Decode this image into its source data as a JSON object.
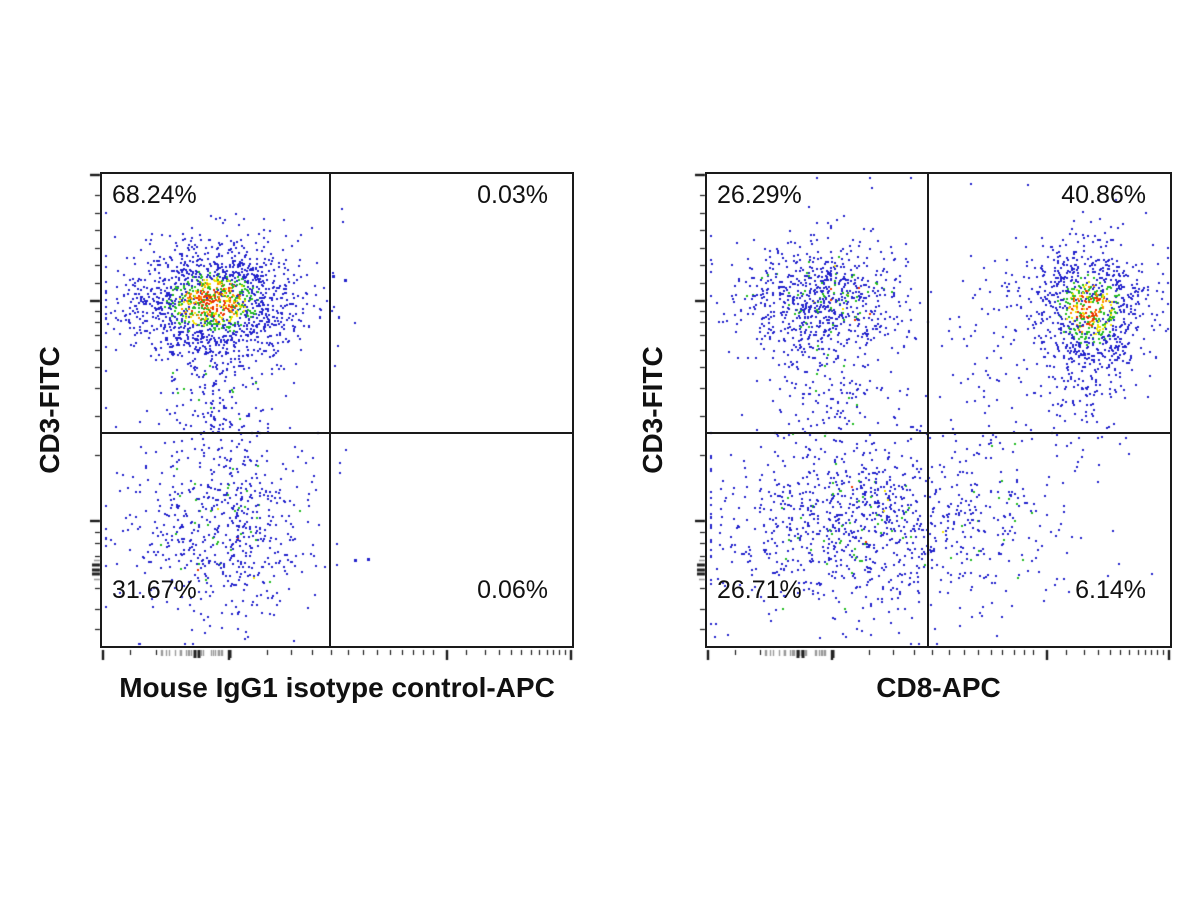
{
  "figure_title": "",
  "colors": {
    "dot_blue": "#2222cc",
    "dot_green": "#22bb22",
    "dot_yellow": "#f0e400",
    "dot_orange": "#ff8800",
    "dot_red": "#ee3300",
    "axis": "#1a1a1a",
    "rug_grey": "#9b9b9b",
    "text": "#111111"
  },
  "axis_ticks": {
    "x_major": [
      0.003,
      0.27,
      0.735,
      0.997
    ],
    "x_minor": [
      0.06,
      0.115,
      0.35,
      0.402,
      0.447,
      0.487,
      0.523,
      0.556,
      0.586,
      0.613,
      0.638,
      0.662,
      0.684,
      0.705,
      0.775,
      0.815,
      0.845,
      0.87,
      0.892,
      0.912,
      0.93,
      0.946,
      0.96,
      0.973,
      0.985
    ],
    "y_major": [
      0.003,
      0.269,
      0.735
    ],
    "y_minor": [
      0.045,
      0.082,
      0.119,
      0.156,
      0.193,
      0.23,
      0.29,
      0.314,
      0.341,
      0.372,
      0.409,
      0.454,
      0.513,
      0.595,
      0.758,
      0.782,
      0.809,
      0.84,
      0.877,
      0.922,
      0.965
    ],
    "x_rug_range": [
      0.125,
      0.285
    ],
    "x_rug_count": 24,
    "x_rug_black": [
      0.197,
      0.207,
      0.272
    ],
    "y_rug_black": [
      0.828,
      0.838,
      0.848
    ],
    "y_rug_grey": [
      0.818,
      0.858
    ]
  },
  "chart_data": [
    {
      "type": "scatter",
      "title": "",
      "xlabel": "Mouse IgG1 isotype control-APC",
      "ylabel": "CD3-FITC",
      "x_scale": "log (no numeric tick labels)",
      "y_scale": "log (no numeric tick labels)",
      "legend": "none",
      "grid": false,
      "quadrant_gate": {
        "x_frac": 0.485,
        "y_frac": 0.548
      },
      "quadrant_stats": {
        "upper_left": "68.24%",
        "upper_right": "0.03%",
        "lower_left": "31.67%",
        "lower_right": "0.06%"
      },
      "populations": [
        {
          "name": "CD3-positive isotype-negative cluster (upper-left, density hot core)",
          "center": [
            0.235,
            0.27
          ],
          "sigma": [
            0.09,
            0.06
          ],
          "n": 1600,
          "palette": "hot",
          "seed": 11
        },
        {
          "name": "upper-left downward tail",
          "center": [
            0.25,
            0.455
          ],
          "sigma": [
            0.06,
            0.068
          ],
          "n": 170,
          "palette": "cool",
          "seed": 12
        },
        {
          "name": "CD3-negative cluster (lower-left)",
          "center": [
            0.253,
            0.745
          ],
          "sigma": [
            0.095,
            0.1
          ],
          "n": 650,
          "palette": "cool",
          "seed": 13
        },
        {
          "name": "stray events",
          "center": [
            0.25,
            0.5
          ],
          "sigma": [
            0.22,
            0.28
          ],
          "n": 25,
          "palette": "blue",
          "seed": 14
        }
      ],
      "isolated_events": {
        "upper_right": [
          [
            0.492,
            0.216
          ],
          [
            0.517,
            0.225
          ]
        ],
        "lower_right": [
          [
            0.538,
            0.817
          ],
          [
            0.565,
            0.815
          ]
        ]
      }
    },
    {
      "type": "scatter",
      "title": "",
      "xlabel": "CD8-APC",
      "ylabel": "CD3-FITC",
      "x_scale": "log (no numeric tick labels)",
      "y_scale": "log (no numeric tick labels)",
      "legend": "none",
      "grid": false,
      "quadrant_gate": {
        "x_frac": 0.477,
        "y_frac": 0.548
      },
      "quadrant_stats": {
        "upper_left": "26.29%",
        "upper_right": "40.86%",
        "lower_left": "26.71%",
        "lower_right": "6.14%"
      },
      "populations": [
        {
          "name": "CD3+ CD8- cluster (upper-left)",
          "center": [
            0.245,
            0.27
          ],
          "sigma": [
            0.09,
            0.062
          ],
          "n": 800,
          "palette": "cool-dense",
          "seed": 21
        },
        {
          "name": "upper-left downward tail",
          "center": [
            0.26,
            0.46
          ],
          "sigma": [
            0.06,
            0.07
          ],
          "n": 120,
          "palette": "cool",
          "seed": 22
        },
        {
          "name": "CD3+ CD8+ cluster (upper-right, density hot core)",
          "center": [
            0.824,
            0.285
          ],
          "sigma": [
            0.062,
            0.068
          ],
          "n": 950,
          "palette": "hot",
          "seed": 23
        },
        {
          "name": "upper-right sparse scatter",
          "center": [
            0.62,
            0.34
          ],
          "sigma": [
            0.08,
            0.12
          ],
          "n": 95,
          "palette": "blue",
          "seed": 24
        },
        {
          "name": "upper-right downward tail",
          "center": [
            0.81,
            0.47
          ],
          "sigma": [
            0.05,
            0.07
          ],
          "n": 80,
          "palette": "blue",
          "seed": 25
        },
        {
          "name": "CD3- cluster spanning lower gate",
          "center": [
            0.32,
            0.74
          ],
          "sigma": [
            0.155,
            0.095
          ],
          "n": 950,
          "palette": "cool",
          "seed": 26
        },
        {
          "name": "lower-right sparse scatter",
          "center": [
            0.62,
            0.72
          ],
          "sigma": [
            0.1,
            0.1
          ],
          "n": 160,
          "palette": "cool",
          "seed": 27
        },
        {
          "name": "stray events",
          "center": [
            0.5,
            0.5
          ],
          "sigma": [
            0.25,
            0.28
          ],
          "n": 30,
          "palette": "blue",
          "seed": 28
        }
      ],
      "isolated_events": {}
    }
  ]
}
